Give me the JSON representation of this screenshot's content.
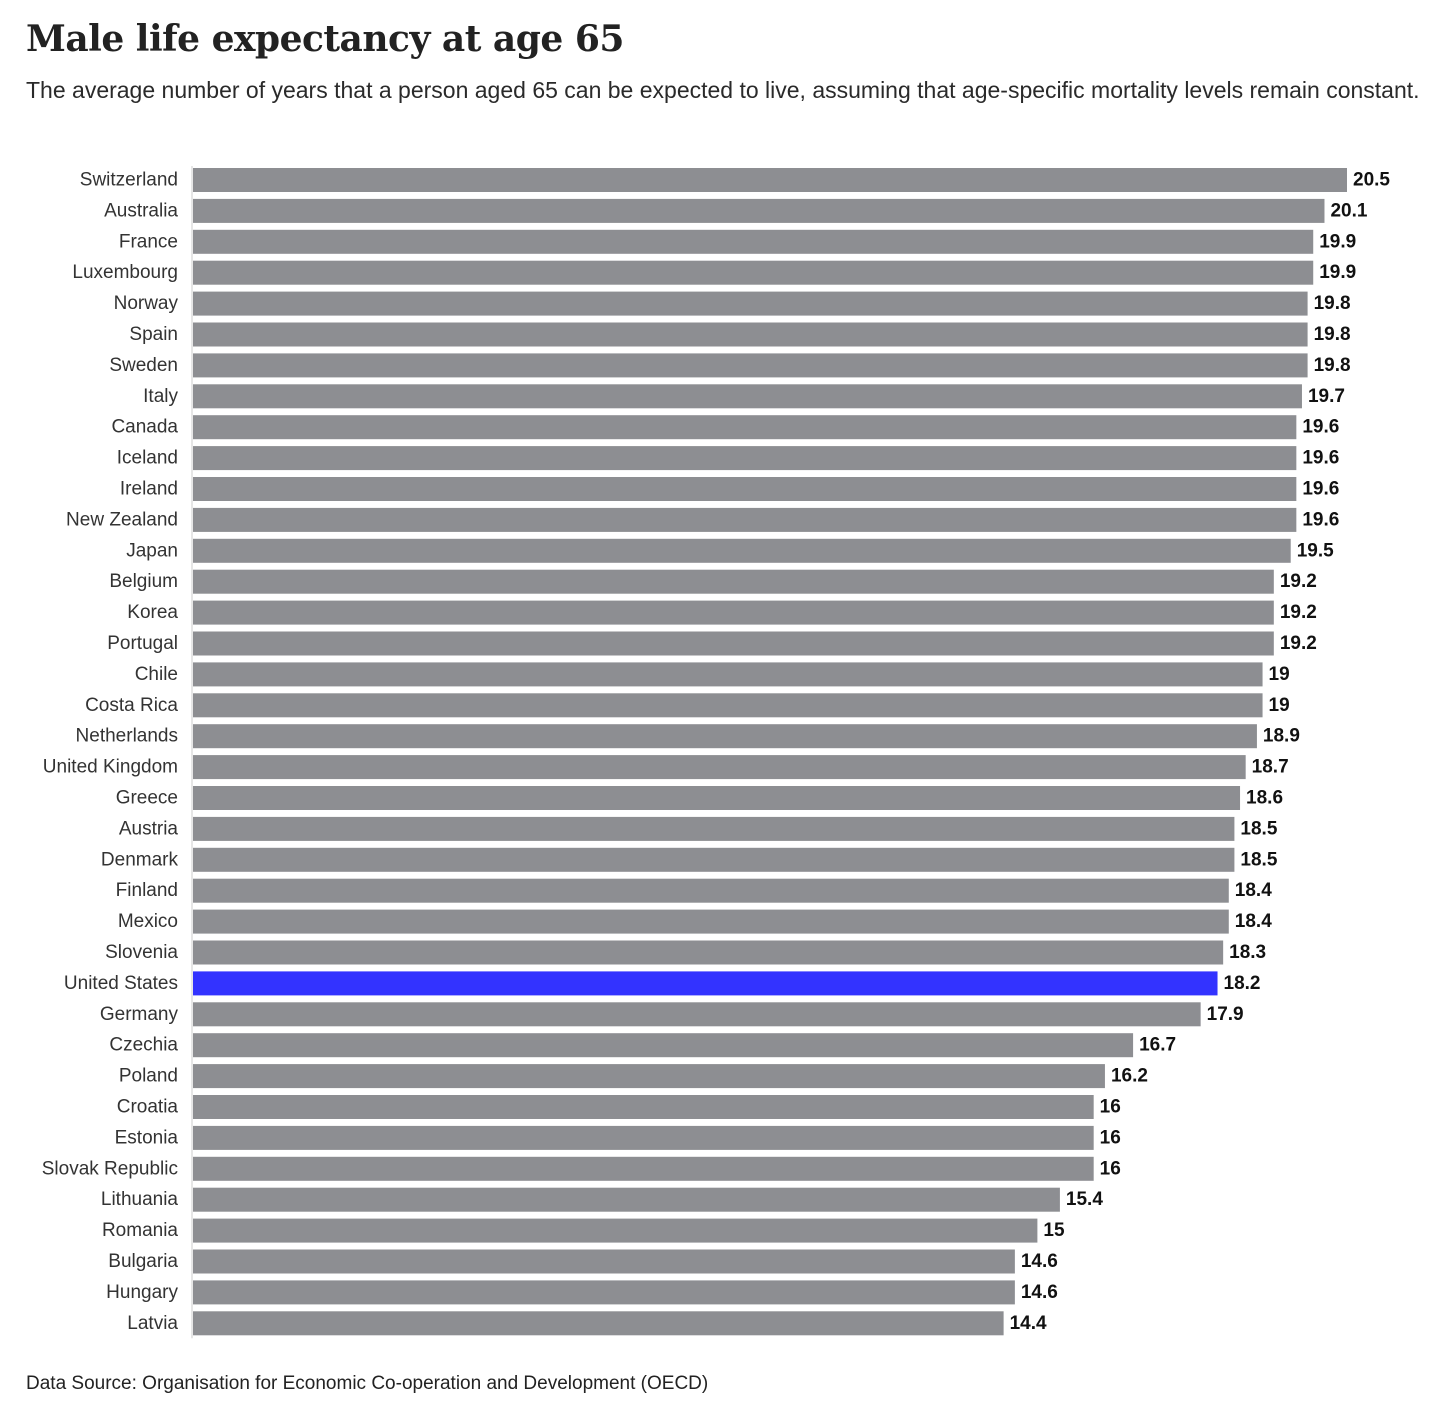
{
  "chart_data": {
    "type": "bar",
    "orientation": "horizontal",
    "title": "Male life expectancy at age 65",
    "subtitle": "The average number of years that a person aged 65 can be expected to live, assuming that age-specific mortality levels remain constant.",
    "source": "Data Source: Organisation for Economic Co-operation and Development (OECD)",
    "categories": [
      "Switzerland",
      "Australia",
      "France",
      "Luxembourg",
      "Norway",
      "Spain",
      "Sweden",
      "Italy",
      "Canada",
      "Iceland",
      "Ireland",
      "New Zealand",
      "Japan",
      "Belgium",
      "Korea",
      "Portugal",
      "Chile",
      "Costa Rica",
      "Netherlands",
      "United Kingdom",
      "Greece",
      "Austria",
      "Denmark",
      "Finland",
      "Mexico",
      "Slovenia",
      "United States",
      "Germany",
      "Czechia",
      "Poland",
      "Croatia",
      "Estonia",
      "Slovak Republic",
      "Lithuania",
      "Romania",
      "Bulgaria",
      "Hungary",
      "Latvia"
    ],
    "values": [
      20.5,
      20.1,
      19.9,
      19.9,
      19.8,
      19.8,
      19.8,
      19.7,
      19.6,
      19.6,
      19.6,
      19.6,
      19.5,
      19.2,
      19.2,
      19.2,
      19,
      19,
      18.9,
      18.7,
      18.6,
      18.5,
      18.5,
      18.4,
      18.4,
      18.3,
      18.2,
      17.9,
      16.7,
      16.2,
      16,
      16,
      16,
      15.4,
      15,
      14.6,
      14.6,
      14.4
    ],
    "highlight": "United States",
    "xlim": [
      0,
      20.5
    ],
    "grid": false,
    "legend": "none",
    "colors": {
      "bar": "#8d8e92",
      "highlight": "#3333ff",
      "axis": "#cccccc"
    }
  }
}
